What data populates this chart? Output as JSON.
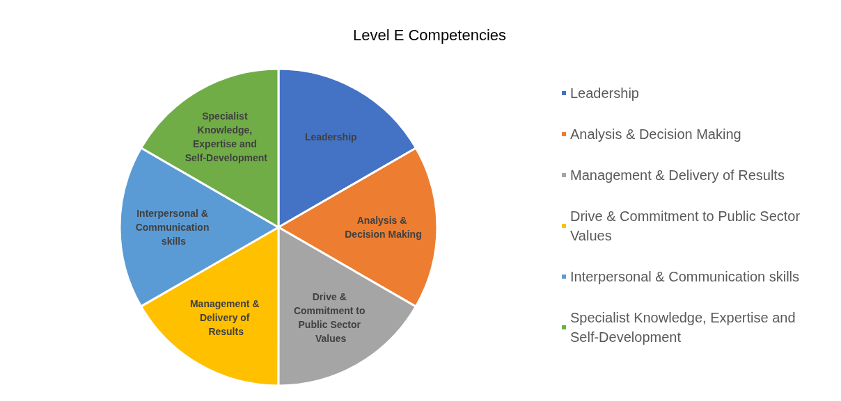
{
  "chart_data": {
    "type": "pie",
    "title": "Level E Competencies",
    "categories": [
      "Leadership",
      "Analysis & Decision Making",
      "Management & Delivery of Results",
      "Drive & Commitment to Public Sector Values",
      "Interpersonal & Communication skills",
      "Specialist Knowledge, Expertise and Self-Development"
    ],
    "values": [
      16.67,
      16.67,
      16.67,
      16.67,
      16.67,
      16.65
    ],
    "colors": [
      "#4472c4",
      "#ed7d31",
      "#a5a5a5",
      "#ffc000",
      "#5b9bd5",
      "#70ad47"
    ],
    "value_labels": [
      "Leadership",
      "Analysis & Decision Making",
      "Drive & Commitment to Public Sector Values",
      "Management & Delivery of Results",
      "Interpersonal & Communication skills",
      "Specialist Knowledge, Expertise and Self-Development"
    ],
    "legend": "right"
  }
}
